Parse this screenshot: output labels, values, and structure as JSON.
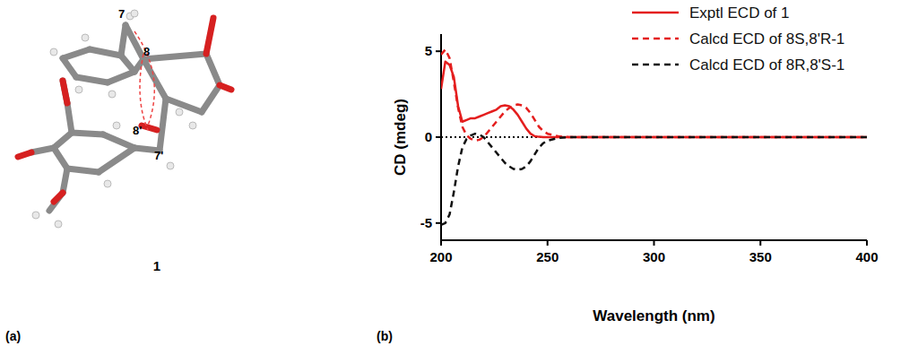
{
  "figure": {
    "panel_a": {
      "label": "(a)",
      "compound": "1",
      "atom_labels": [
        "7",
        "8",
        "8'",
        "7'"
      ]
    },
    "panel_b": {
      "label": "(b)"
    }
  },
  "chart_data": {
    "type": "line",
    "x_label": "Wavelength (nm)",
    "y_label": "CD (mdeg)",
    "x": [
      200,
      202,
      204,
      206,
      208,
      210,
      212,
      214,
      216,
      218,
      220,
      222,
      224,
      226,
      228,
      230,
      232,
      234,
      236,
      238,
      240,
      242,
      244,
      246,
      248,
      250,
      255,
      260,
      270,
      280,
      300,
      320,
      340,
      360,
      380,
      400
    ],
    "series": [
      {
        "name": "Exptl ECD of 1",
        "color": "#e41e1e",
        "line_style": "solid",
        "values": [
          2.8,
          4.4,
          4.2,
          3.5,
          1.8,
          0.9,
          1.0,
          1.1,
          1.1,
          1.2,
          1.3,
          1.4,
          1.5,
          1.6,
          1.8,
          1.85,
          1.8,
          1.6,
          1.3,
          0.9,
          0.5,
          0.2,
          0.05,
          0.02,
          0,
          0,
          0,
          0,
          0,
          0,
          0,
          0,
          0,
          0,
          0,
          0
        ]
      },
      {
        "name": "Calcd ECD of 8S,8'R-1",
        "color": "#e41e1e",
        "line_style": "dashed",
        "values": [
          4.8,
          5.1,
          4.6,
          3.2,
          1.7,
          0.6,
          0.1,
          -0.1,
          -0.2,
          -0.15,
          0.0,
          0.3,
          0.6,
          0.9,
          1.2,
          1.5,
          1.7,
          1.85,
          1.9,
          1.85,
          1.7,
          1.4,
          1.0,
          0.6,
          0.35,
          0.2,
          0.05,
          0,
          0,
          0,
          0,
          0,
          0,
          0,
          0,
          0
        ]
      },
      {
        "name": "Calcd ECD of 8R,8'S-1",
        "color": "#111111",
        "line_style": "dashed",
        "values": [
          -5.1,
          -5.0,
          -4.5,
          -3.2,
          -1.7,
          -0.6,
          -0.1,
          0.1,
          0.2,
          0.15,
          0.0,
          -0.3,
          -0.6,
          -0.9,
          -1.2,
          -1.5,
          -1.7,
          -1.85,
          -1.9,
          -1.85,
          -1.7,
          -1.4,
          -1.0,
          -0.6,
          -0.35,
          -0.2,
          -0.05,
          0,
          0,
          0,
          0,
          0,
          0,
          0,
          0,
          0
        ]
      }
    ],
    "xlim": [
      200,
      400
    ],
    "xticks": [
      200,
      250,
      300,
      350,
      400
    ],
    "ylim": [
      -6,
      6
    ],
    "yticks": [
      -5,
      0,
      5
    ],
    "hline": 0,
    "legend": "upper right",
    "grid": false
  }
}
